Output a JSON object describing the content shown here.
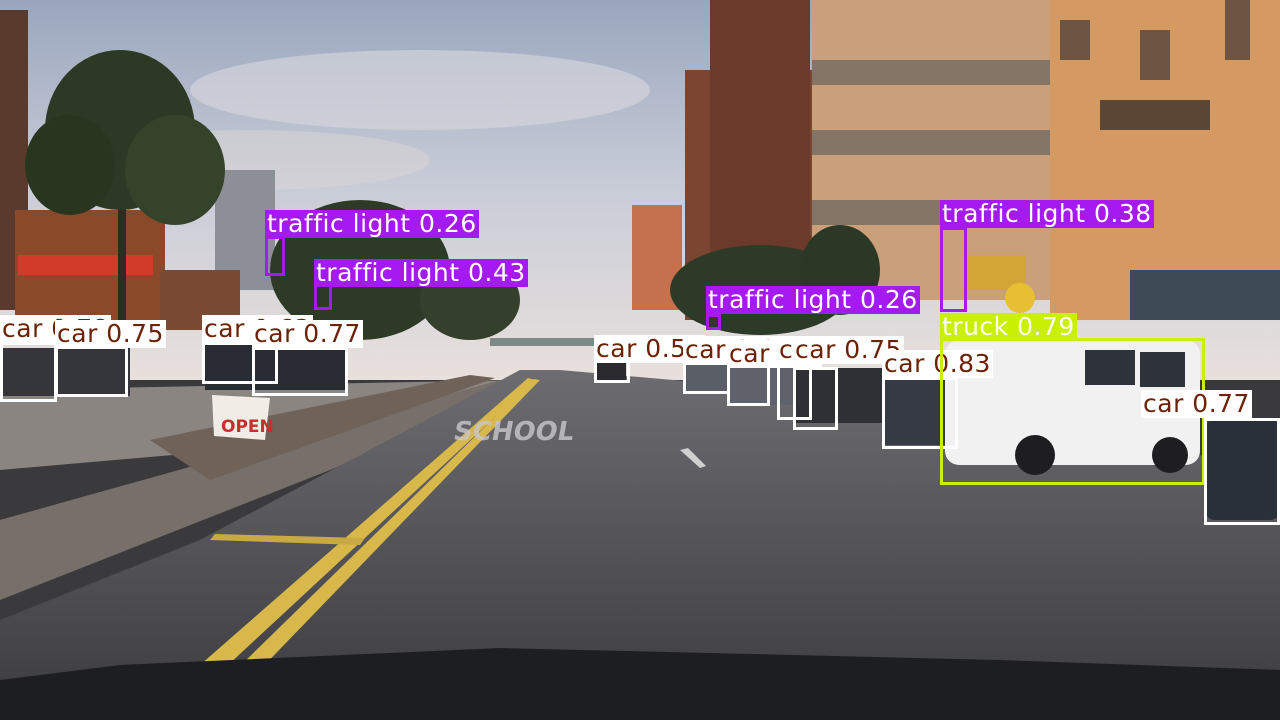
{
  "colors": {
    "car": "#ffffff",
    "truck": "#c8f000",
    "traffic_light": "#a51af0",
    "car_label_text": "#6b2206"
  },
  "scene": {
    "road_marking": "SCHOOL",
    "sign_text": "OPEN"
  },
  "detections": [
    {
      "cls": "car",
      "label": "car 0.78"
    },
    {
      "cls": "car",
      "label": "car 0.75"
    },
    {
      "cls": "car",
      "label": "car 0.63"
    },
    {
      "cls": "car",
      "label": "car 0.77"
    },
    {
      "cls": "traffic-light",
      "label": "traffic light 0.26"
    },
    {
      "cls": "traffic-light",
      "label": "traffic light 0.43"
    },
    {
      "cls": "car",
      "label": "car 0.59"
    },
    {
      "cls": "car",
      "label": "car 0.6"
    },
    {
      "cls": "car",
      "label": "car 0.5"
    },
    {
      "cls": "car",
      "label": "car 0.5"
    },
    {
      "cls": "car",
      "label": "car 0.75"
    },
    {
      "cls": "traffic-light",
      "label": "traffic light 0.26"
    },
    {
      "cls": "car",
      "label": "car 0.83"
    },
    {
      "cls": "traffic-light",
      "label": "traffic light 0.38"
    },
    {
      "cls": "truck",
      "label": "truck 0.79"
    },
    {
      "cls": "car",
      "label": "car 0.77"
    }
  ]
}
